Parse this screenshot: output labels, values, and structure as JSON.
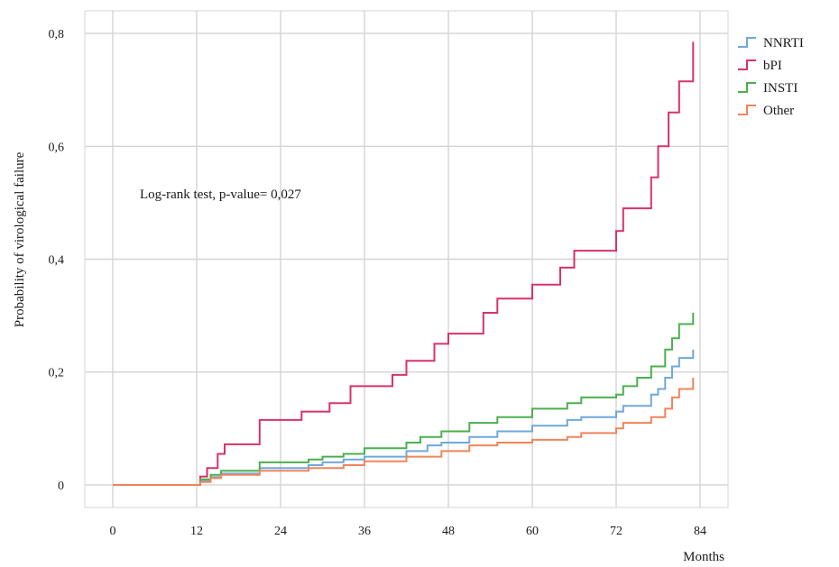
{
  "chart_data": {
    "type": "line",
    "step": true,
    "title": "",
    "xlabel": "Months",
    "ylabel": "Probability of virological failure",
    "xlim": [
      -4,
      88
    ],
    "ylim": [
      -0.04,
      0.84
    ],
    "x_ticks": [
      0,
      12,
      24,
      36,
      48,
      60,
      72,
      84
    ],
    "x_tick_labels": [
      "0",
      "12",
      "24",
      "36",
      "48",
      "60",
      "72",
      "84"
    ],
    "y_ticks": [
      0,
      0.2,
      0.4,
      0.6,
      0.8
    ],
    "y_tick_labels": [
      "0",
      "0,2",
      "0,4",
      "0,6",
      "0,8"
    ],
    "grid": true,
    "legend_position": "top-right",
    "annotation": "Log-rank test, p-value= 0,027",
    "series": [
      {
        "name": "NNRTI",
        "color": "#6fa8dc",
        "points": [
          [
            0,
            0
          ],
          [
            12,
            0
          ],
          [
            12.5,
            0.008
          ],
          [
            14,
            0.014
          ],
          [
            15.5,
            0.02
          ],
          [
            21,
            0.03
          ],
          [
            28,
            0.035
          ],
          [
            30,
            0.04
          ],
          [
            33,
            0.045
          ],
          [
            36,
            0.05
          ],
          [
            42,
            0.06
          ],
          [
            45,
            0.07
          ],
          [
            47,
            0.075
          ],
          [
            51,
            0.085
          ],
          [
            55,
            0.095
          ],
          [
            60,
            0.105
          ],
          [
            65,
            0.115
          ],
          [
            67,
            0.12
          ],
          [
            72,
            0.13
          ],
          [
            73,
            0.14
          ],
          [
            77,
            0.16
          ],
          [
            78,
            0.17
          ],
          [
            79,
            0.19
          ],
          [
            80,
            0.21
          ],
          [
            81,
            0.225
          ],
          [
            83,
            0.24
          ]
        ]
      },
      {
        "name": "bPI",
        "color": "#d6336c",
        "points": [
          [
            0,
            0
          ],
          [
            12,
            0
          ],
          [
            12.5,
            0.015
          ],
          [
            13.5,
            0.03
          ],
          [
            15,
            0.055
          ],
          [
            16,
            0.072
          ],
          [
            21,
            0.115
          ],
          [
            27,
            0.13
          ],
          [
            31,
            0.145
          ],
          [
            34,
            0.175
          ],
          [
            40,
            0.195
          ],
          [
            42,
            0.22
          ],
          [
            46,
            0.25
          ],
          [
            48,
            0.268
          ],
          [
            53,
            0.305
          ],
          [
            55,
            0.33
          ],
          [
            60,
            0.355
          ],
          [
            64,
            0.385
          ],
          [
            66,
            0.415
          ],
          [
            72,
            0.45
          ],
          [
            73,
            0.49
          ],
          [
            77,
            0.545
          ],
          [
            78,
            0.6
          ],
          [
            79.5,
            0.66
          ],
          [
            81,
            0.715
          ],
          [
            83,
            0.785
          ]
        ]
      },
      {
        "name": "INSTI",
        "color": "#4caf50",
        "points": [
          [
            0,
            0
          ],
          [
            12,
            0
          ],
          [
            12.5,
            0.01
          ],
          [
            14,
            0.018
          ],
          [
            15.5,
            0.025
          ],
          [
            21,
            0.04
          ],
          [
            28,
            0.045
          ],
          [
            30,
            0.05
          ],
          [
            33,
            0.055
          ],
          [
            36,
            0.065
          ],
          [
            42,
            0.075
          ],
          [
            44,
            0.085
          ],
          [
            47,
            0.095
          ],
          [
            51,
            0.11
          ],
          [
            55,
            0.12
          ],
          [
            60,
            0.135
          ],
          [
            65,
            0.145
          ],
          [
            67,
            0.155
          ],
          [
            72,
            0.16
          ],
          [
            73,
            0.175
          ],
          [
            75,
            0.19
          ],
          [
            77,
            0.21
          ],
          [
            79,
            0.24
          ],
          [
            80,
            0.26
          ],
          [
            81,
            0.285
          ],
          [
            83,
            0.305
          ]
        ]
      },
      {
        "name": "Other",
        "color": "#f0845b",
        "points": [
          [
            0,
            0
          ],
          [
            12,
            0
          ],
          [
            12.5,
            0.005
          ],
          [
            14,
            0.012
          ],
          [
            15.5,
            0.018
          ],
          [
            21,
            0.025
          ],
          [
            28,
            0.03
          ],
          [
            33,
            0.035
          ],
          [
            36,
            0.042
          ],
          [
            42,
            0.05
          ],
          [
            47,
            0.06
          ],
          [
            51,
            0.07
          ],
          [
            55,
            0.075
          ],
          [
            60,
            0.08
          ],
          [
            65,
            0.085
          ],
          [
            67,
            0.092
          ],
          [
            72,
            0.1
          ],
          [
            73,
            0.11
          ],
          [
            77,
            0.12
          ],
          [
            79,
            0.135
          ],
          [
            80,
            0.155
          ],
          [
            81,
            0.17
          ],
          [
            83,
            0.19
          ]
        ]
      }
    ]
  }
}
